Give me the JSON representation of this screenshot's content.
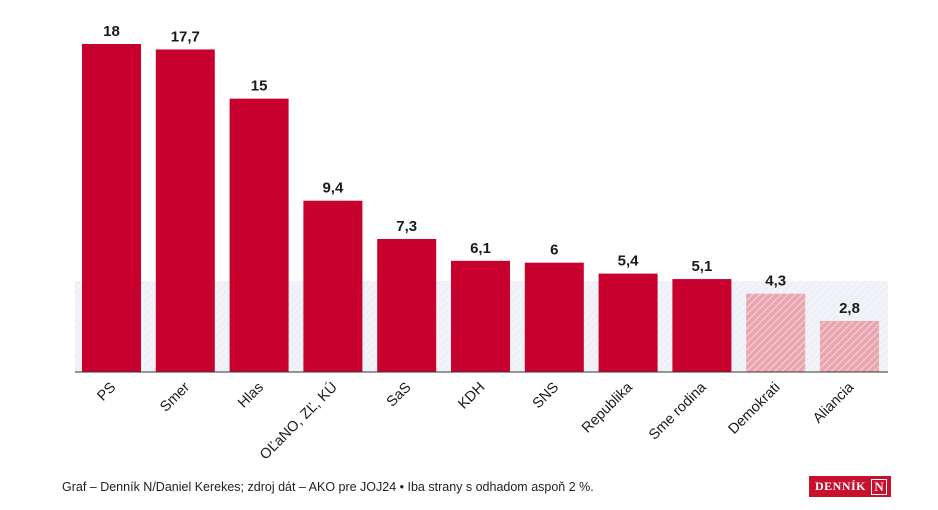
{
  "chart_data": {
    "type": "bar",
    "categories": [
      "PS",
      "Smer",
      "Hlas",
      "OĽaNO, ZĽ, KÚ",
      "SaS",
      "KDH",
      "SNS",
      "Republika",
      "Sme rodina",
      "Demokrati",
      "Aliancia"
    ],
    "values": [
      18,
      17.7,
      15,
      9.4,
      7.3,
      6.1,
      6,
      5.4,
      5.1,
      4.3,
      2.8
    ],
    "value_labels": [
      "18",
      "17,7",
      "15",
      "9,4",
      "7,3",
      "6,1",
      "6",
      "5,4",
      "5,1",
      "4,3",
      "2,8"
    ],
    "below_threshold": [
      false,
      false,
      false,
      false,
      false,
      false,
      false,
      false,
      false,
      true,
      true
    ],
    "threshold": 5,
    "ylim": [
      0,
      18
    ],
    "grid": false,
    "title": "",
    "xlabel": "",
    "ylabel": ""
  },
  "colors": {
    "bar": "#c8002d",
    "bar_below_threshold": "#eeb0ba",
    "threshold_band": "#eef0f6",
    "axis": "#333333"
  },
  "footer": {
    "source": "Graf – Denník N/Daniel Kerekes; zdroj dát – AKO pre JOJ24 • Iba strany s odhadom aspoň 2 %."
  },
  "logo": {
    "text": "DENNÍK",
    "mark": "N"
  }
}
